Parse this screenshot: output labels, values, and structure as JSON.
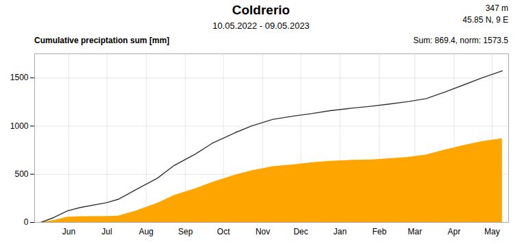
{
  "chart_data": {
    "type": "area",
    "title": "Coldrerio",
    "subtitle": "10.05.2022 - 09.05.2023",
    "ylabel": "Cumulative preciptation sum [mm]",
    "annotations": [
      "347 m",
      "45.85 N, 9 E",
      "Sum: 869.4, norm: 1573.5"
    ],
    "x": [
      0,
      10,
      21,
      31,
      52,
      61,
      75,
      92,
      105,
      122,
      135,
      153,
      166,
      183,
      200,
      214,
      228,
      245,
      260,
      273,
      290,
      304,
      320,
      334,
      348,
      364
    ],
    "series": [
      {
        "type": "area",
        "color": "#FFA500",
        "values": [
          0,
          20,
          55,
          60,
          63,
          65,
          120,
          200,
          280,
          350,
          415,
          490,
          535,
          580,
          600,
          620,
          635,
          645,
          650,
          660,
          675,
          700,
          755,
          800,
          840,
          869.4
        ]
      },
      {
        "type": "line",
        "color": "#333333",
        "values": [
          0,
          50,
          120,
          155,
          205,
          240,
          340,
          460,
          590,
          710,
          820,
          930,
          1000,
          1070,
          1105,
          1130,
          1160,
          1185,
          1205,
          1225,
          1255,
          1285,
          1360,
          1430,
          1500,
          1573.5
        ]
      }
    ],
    "xlim": [
      -5,
      369
    ],
    "xticks": [
      {
        "value": 22,
        "label": "Jun"
      },
      {
        "value": 52,
        "label": "Jul"
      },
      {
        "value": 83,
        "label": "Aug"
      },
      {
        "value": 114,
        "label": "Sep"
      },
      {
        "value": 144,
        "label": "Oct"
      },
      {
        "value": 175,
        "label": "Nov"
      },
      {
        "value": 205,
        "label": "Dec"
      },
      {
        "value": 236,
        "label": "Jan"
      },
      {
        "value": 267,
        "label": "Feb"
      },
      {
        "value": 295,
        "label": "Mar"
      },
      {
        "value": 326,
        "label": "Apr"
      },
      {
        "value": 356,
        "label": "May"
      }
    ],
    "ylim": [
      0,
      1750
    ],
    "yticks": [
      0,
      500,
      1000,
      1500
    ],
    "grid": true
  }
}
